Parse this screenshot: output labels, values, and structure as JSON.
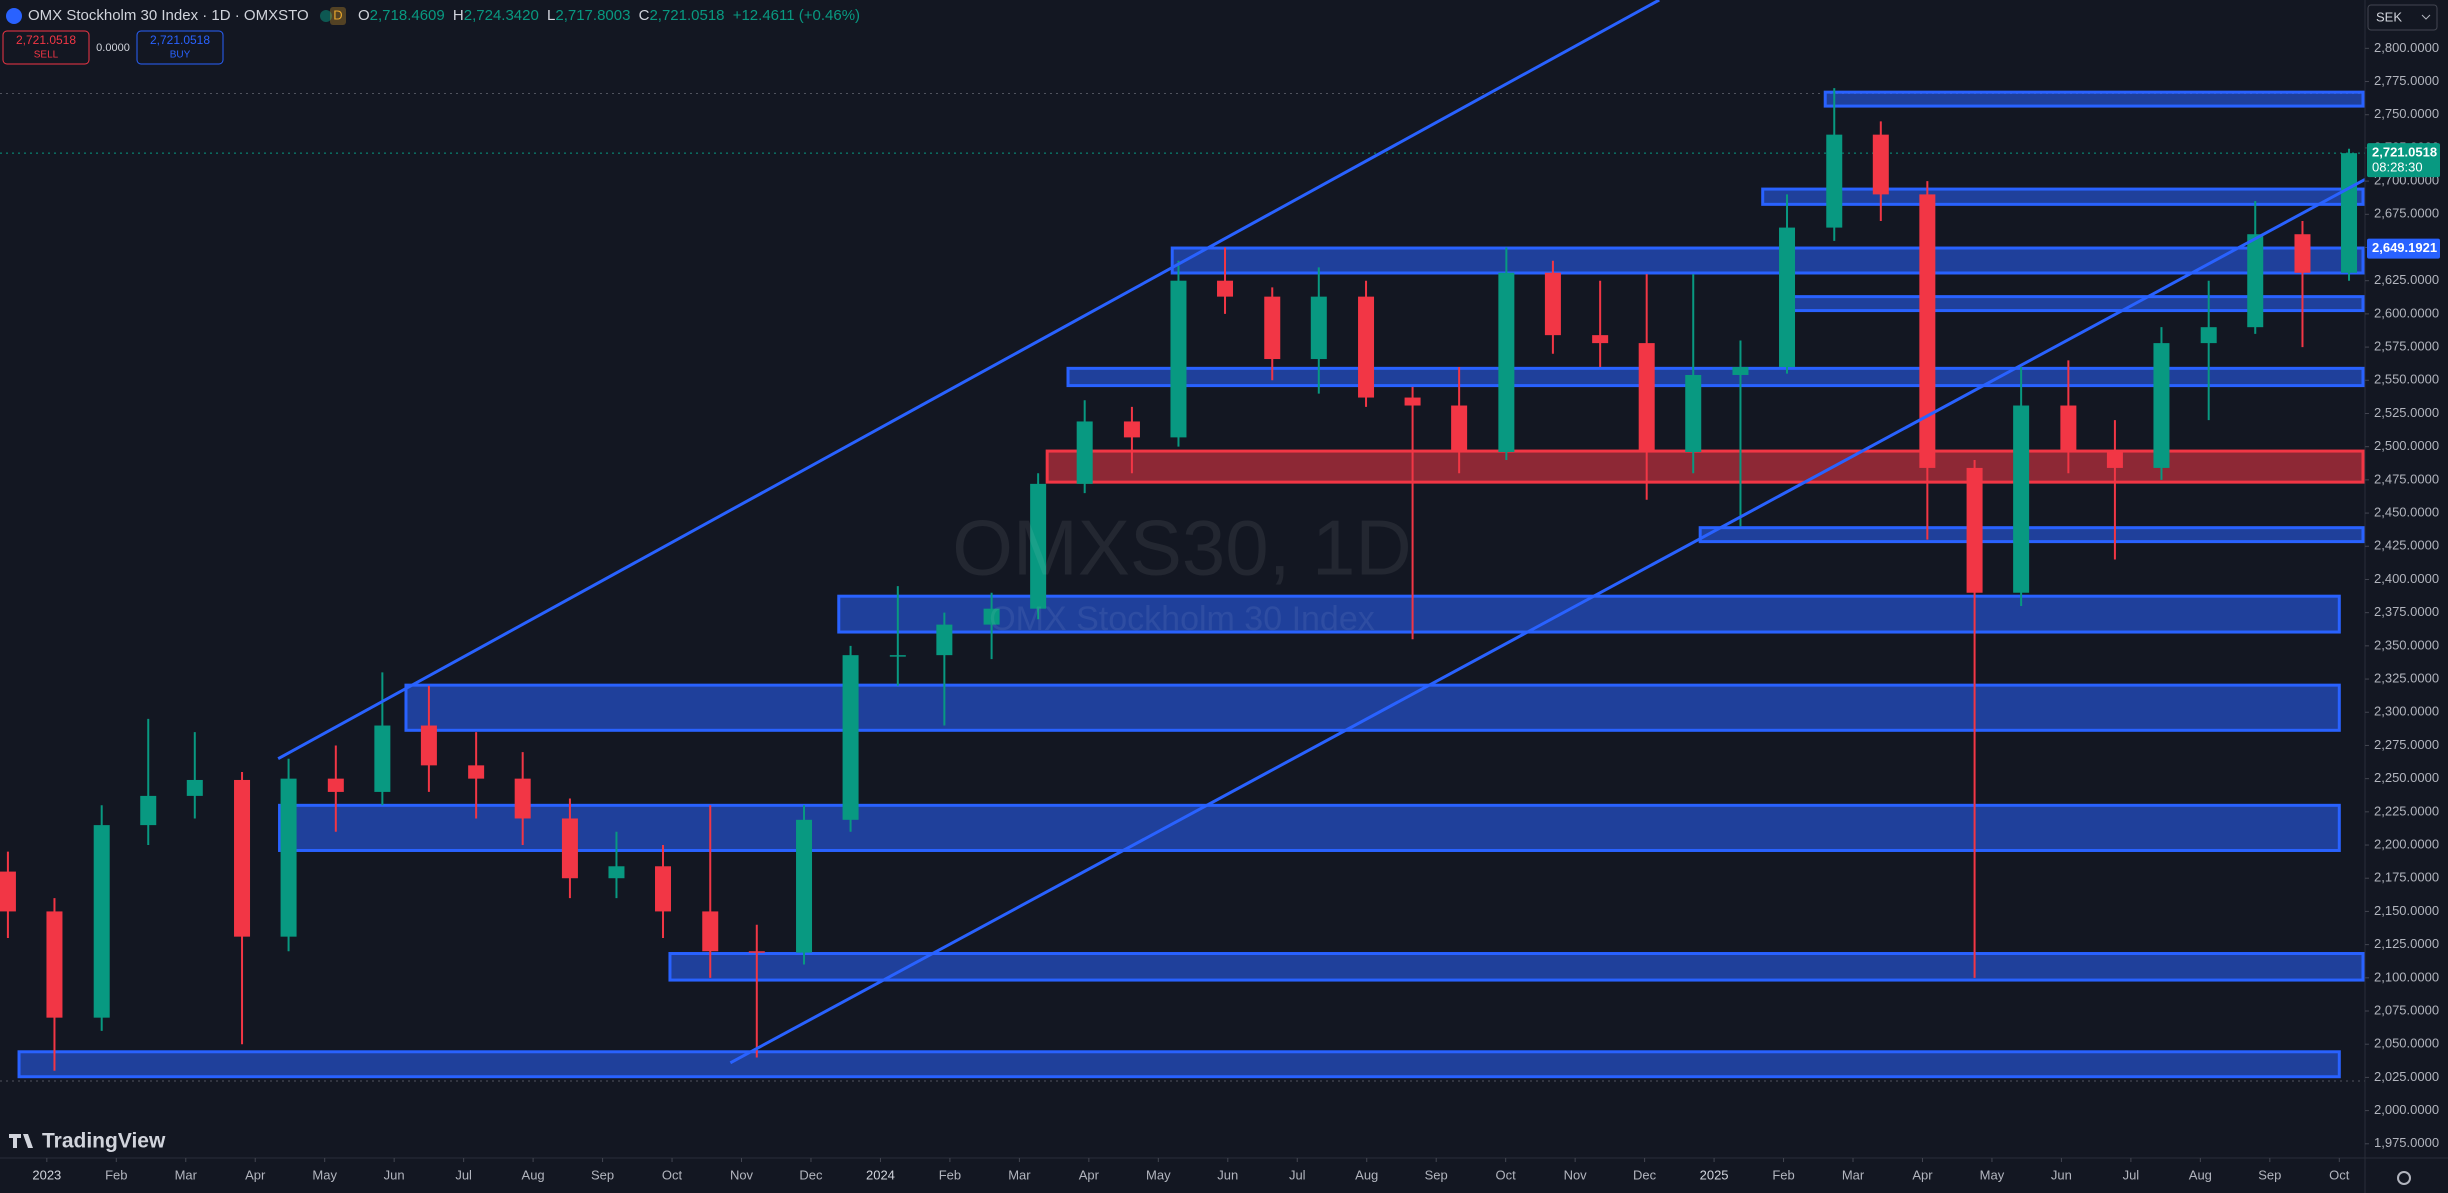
{
  "header": {
    "symbol": "OMX Stockholm 30 Index · 1D · OMXSTO",
    "badge": "D",
    "ohlc": [
      {
        "label": "O",
        "value": "2,718.4609"
      },
      {
        "label": "H",
        "value": "2,724.3420"
      },
      {
        "label": "L",
        "value": "2,717.8003"
      },
      {
        "label": "C",
        "value": "2,721.0518"
      }
    ],
    "change": "+12.4611 (+0.46%)",
    "sell": {
      "price": "2,721.0518",
      "label": "SELL"
    },
    "spread": "0.0000",
    "buy": {
      "price": "2,721.0518",
      "label": "BUY"
    },
    "currency": "SEK",
    "watermark": "OMXS30, 1D",
    "watermark_sub": "OMX Stockholm 30 Index",
    "brand": "TradingView"
  },
  "chart_data": {
    "type": "candlestick",
    "up_color": "#089981",
    "down_color": "#f23645",
    "xlim": [
      -0.674,
      33.37
    ],
    "ylim": [
      1964.3,
      2836.4
    ],
    "xticks": [
      {
        "value": 0,
        "label": "2023"
      },
      {
        "value": 1,
        "label": "Feb"
      },
      {
        "value": 2,
        "label": "Mar"
      },
      {
        "value": 3,
        "label": "Apr"
      },
      {
        "value": 4,
        "label": "May"
      },
      {
        "value": 5,
        "label": "Jun"
      },
      {
        "value": 6,
        "label": "Jul"
      },
      {
        "value": 7,
        "label": "Aug"
      },
      {
        "value": 8,
        "label": "Sep"
      },
      {
        "value": 9,
        "label": "Oct"
      },
      {
        "value": 10,
        "label": "Nov"
      },
      {
        "value": 11,
        "label": "Dec"
      },
      {
        "value": 12,
        "label": "2024"
      },
      {
        "value": 13,
        "label": "Feb"
      },
      {
        "value": 14,
        "label": "Mar"
      },
      {
        "value": 15,
        "label": "Apr"
      },
      {
        "value": 16,
        "label": "May"
      },
      {
        "value": 17,
        "label": "Jun"
      },
      {
        "value": 18,
        "label": "Jul"
      },
      {
        "value": 19,
        "label": "Aug"
      },
      {
        "value": 20,
        "label": "Sep"
      },
      {
        "value": 21,
        "label": "Oct"
      },
      {
        "value": 22,
        "label": "Nov"
      },
      {
        "value": 23,
        "label": "Dec"
      },
      {
        "value": 24,
        "label": "2025"
      },
      {
        "value": 25,
        "label": "Feb"
      },
      {
        "value": 26,
        "label": "Mar"
      },
      {
        "value": 27,
        "label": "Apr"
      },
      {
        "value": 28,
        "label": "May"
      },
      {
        "value": 29,
        "label": "Jun"
      },
      {
        "value": 30,
        "label": "Jul"
      },
      {
        "value": 31,
        "label": "Aug"
      },
      {
        "value": 32,
        "label": "Sep"
      },
      {
        "value": 33,
        "label": "Oct"
      }
    ],
    "yticks": [
      {
        "value": 1975,
        "label": "1,975.0000"
      },
      {
        "value": 2000,
        "label": "2,000.0000"
      },
      {
        "value": 2025,
        "label": "2,025.0000"
      },
      {
        "value": 2050,
        "label": "2,050.0000"
      },
      {
        "value": 2075,
        "label": "2,075.0000"
      },
      {
        "value": 2100,
        "label": "2,100.0000"
      },
      {
        "value": 2125,
        "label": "2,125.0000"
      },
      {
        "value": 2150,
        "label": "2,150.0000"
      },
      {
        "value": 2175,
        "label": "2,175.0000"
      },
      {
        "value": 2200,
        "label": "2,200.0000"
      },
      {
        "value": 2225,
        "label": "2,225.0000"
      },
      {
        "value": 2250,
        "label": "2,250.0000"
      },
      {
        "value": 2275,
        "label": "2,275.0000"
      },
      {
        "value": 2300,
        "label": "2,300.0000"
      },
      {
        "value": 2325,
        "label": "2,325.0000"
      },
      {
        "value": 2350,
        "label": "2,350.0000"
      },
      {
        "value": 2375,
        "label": "2,375.0000"
      },
      {
        "value": 2400,
        "label": "2,400.0000"
      },
      {
        "value": 2425,
        "label": "2,425.0000"
      },
      {
        "value": 2450,
        "label": "2,450.0000"
      },
      {
        "value": 2475,
        "label": "2,475.0000"
      },
      {
        "value": 2500,
        "label": "2,500.0000"
      },
      {
        "value": 2525,
        "label": "2,525.0000"
      },
      {
        "value": 2550,
        "label": "2,550.0000"
      },
      {
        "value": 2575,
        "label": "2,575.0000"
      },
      {
        "value": 2600,
        "label": "2,600.0000"
      },
      {
        "value": 2625,
        "label": "2,625.0000"
      },
      {
        "value": 2650,
        "label": "2,650.0000"
      },
      {
        "value": 2675,
        "label": "2,675.0000"
      },
      {
        "value": 2700,
        "label": "2,700.0000"
      },
      {
        "value": 2725,
        "label": "2,725.0000"
      },
      {
        "value": 2750,
        "label": "2,750.0000"
      },
      {
        "value": 2775,
        "label": "2,775.0000"
      },
      {
        "value": 2800,
        "label": "2,800.0000"
      }
    ],
    "x": [
      -0.56,
      0.11,
      0.79,
      1.46,
      2.13,
      2.81,
      3.48,
      4.16,
      4.83,
      5.5,
      6.18,
      6.85,
      7.53,
      8.2,
      8.87,
      9.55,
      10.22,
      10.9,
      11.57,
      12.25,
      12.92,
      13.6,
      14.27,
      14.94,
      15.62,
      16.29,
      16.96,
      17.64,
      18.31,
      18.99,
      19.66,
      20.33,
      21.01,
      21.68,
      22.36,
      23.03,
      23.7,
      24.38,
      25.05,
      25.73,
      26.4,
      27.07,
      27.75,
      28.42,
      29.1,
      29.77,
      30.44,
      31.12,
      31.79,
      32.47,
      33.14
    ],
    "open": [
      2180,
      2150,
      2070,
      2215,
      2237,
      2249,
      2131,
      2250,
      2240,
      2290,
      2260,
      2250,
      2220,
      2175,
      2184,
      2150,
      2120,
      2119,
      2219,
      2343,
      2343,
      2366,
      2378,
      2472,
      2519,
      2507,
      2625,
      2613,
      2566,
      2613,
      2537,
      2531,
      2496,
      2631,
      2584,
      2578,
      2496,
      2554,
      2560,
      2665,
      2735,
      2690,
      2484,
      2390,
      2531,
      2496,
      2484,
      2578,
      2590,
      2660,
      2631
    ],
    "high": [
      2195,
      2160,
      2230,
      2295,
      2285,
      2255,
      2265,
      2275,
      2330,
      2320,
      2285,
      2270,
      2235,
      2210,
      2200,
      2230,
      2140,
      2230,
      2350,
      2395,
      2375,
      2390,
      2480,
      2535,
      2530,
      2640,
      2650,
      2620,
      2635,
      2625,
      2545,
      2560,
      2650,
      2640,
      2625,
      2630,
      2630,
      2580,
      2690,
      2770,
      2745,
      2700,
      2490,
      2560,
      2565,
      2520,
      2590,
      2625,
      2685,
      2670,
      2724.342
    ],
    "low": [
      2130,
      2030,
      2060,
      2200,
      2220,
      2050,
      2120,
      2210,
      2230,
      2240,
      2220,
      2200,
      2160,
      2160,
      2130,
      2100,
      2040,
      2110,
      2210,
      2320,
      2290,
      2340,
      2370,
      2465,
      2480,
      2500,
      2600,
      2550,
      2540,
      2530,
      2355,
      2480,
      2490,
      2570,
      2560,
      2460,
      2480,
      2440,
      2555,
      2655,
      2670,
      2430,
      2100,
      2380,
      2480,
      2415,
      2475,
      2520,
      2585,
      2575,
      2625
    ],
    "close": [
      2150,
      2070,
      2215,
      2237,
      2249,
      2131,
      2250,
      2240,
      2290,
      2260,
      2250,
      2220,
      2175,
      2184,
      2150,
      2120,
      2119,
      2219,
      2343,
      2343,
      2366,
      2378,
      2472,
      2519,
      2507,
      2625,
      2613,
      2566,
      2613,
      2537,
      2531,
      2496,
      2631,
      2584,
      2578,
      2496,
      2554,
      2560,
      2665,
      2735,
      2690,
      2484,
      2390,
      2531,
      2496,
      2484,
      2578,
      2590,
      2660,
      2631,
      2721.0518
    ],
    "zones": [
      {
        "low": 2756.5,
        "high": 2767,
        "start": 25.6,
        "end": 33.37,
        "color": "#2962ff"
      },
      {
        "low": 2682.5,
        "high": 2694,
        "start": 24.7,
        "end": 33.37,
        "color": "#2962ff"
      },
      {
        "low": 2630.8,
        "high": 2649.6,
        "start": 16.2,
        "end": 33.37,
        "color": "#2962ff"
      },
      {
        "low": 2602.5,
        "high": 2613,
        "start": 25.0,
        "end": 33.37,
        "color": "#2962ff"
      },
      {
        "low": 2546,
        "high": 2559,
        "start": 14.7,
        "end": 33.37,
        "color": "#2962ff"
      },
      {
        "low": 2473.3,
        "high": 2496.7,
        "start": 14.4,
        "end": 33.37,
        "color": "#f23645"
      },
      {
        "low": 2428.5,
        "high": 2439,
        "start": 23.8,
        "end": 33.37,
        "color": "#2962ff"
      },
      {
        "low": 2360.4,
        "high": 2387.4,
        "start": 11.4,
        "end": 33.0,
        "color": "#2962ff"
      },
      {
        "low": 2286.4,
        "high": 2320.4,
        "start": 5.17,
        "end": 33.0,
        "color": "#2962ff"
      },
      {
        "low": 2195.9,
        "high": 2229.9,
        "start": 3.35,
        "end": 33.0,
        "color": "#2962ff"
      },
      {
        "low": 2098.3,
        "high": 2118.3,
        "start": 8.97,
        "end": 33.37,
        "color": "#2962ff"
      },
      {
        "low": 2025.5,
        "high": 2044.3,
        "start": -0.4,
        "end": 33.0,
        "color": "#2962ff"
      }
    ],
    "trendlines": [
      {
        "x": [
          3.33,
          23.21
        ],
        "y": [
          2265,
          2836.4
        ],
        "color": "#2962ff"
      },
      {
        "x": [
          9.84,
          33.37
        ],
        "y": [
          2036,
          2701.3
        ],
        "color": "#2962ff"
      }
    ],
    "hlines": [
      {
        "value": 2766,
        "color": "#50535e"
      },
      {
        "value": 2721.0518,
        "color": "#089981"
      },
      {
        "value": 2022.3,
        "color": "#50535e"
      }
    ],
    "price_labels": [
      {
        "value": 2721.0518,
        "label": "2,721.0518",
        "sublabel": "08:28:30",
        "color": "#089981"
      },
      {
        "value": 2649.1921,
        "label": "2,649.1921",
        "color": "#2962ff"
      }
    ]
  }
}
